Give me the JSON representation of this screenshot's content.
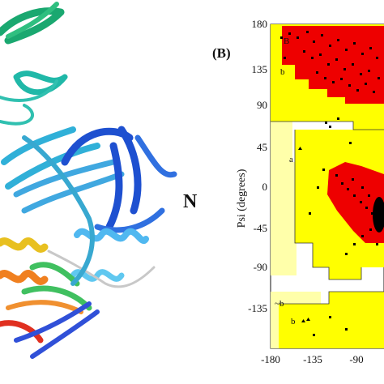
{
  "panel_label": "(B)",
  "terminus_label": "N",
  "colors": {
    "most_favoured": "#ee0000",
    "allowed": "#ffff00",
    "generous": "#ffffaa",
    "disallowed": "#ffffff",
    "points": "#000000"
  },
  "chart_data": {
    "type": "scatter",
    "title": "",
    "xlabel": "",
    "ylabel": "Psi (degrees)",
    "xlim": [
      -180,
      -60
    ],
    "ylim": [
      -180,
      180
    ],
    "x_ticks": [
      "-180",
      "-135",
      "-90"
    ],
    "y_ticks": [
      "180",
      "135",
      "90",
      "45",
      "0",
      "-45",
      "-90",
      "-135"
    ],
    "region_labels": [
      "B",
      "b",
      "a",
      "~b",
      "b"
    ]
  }
}
